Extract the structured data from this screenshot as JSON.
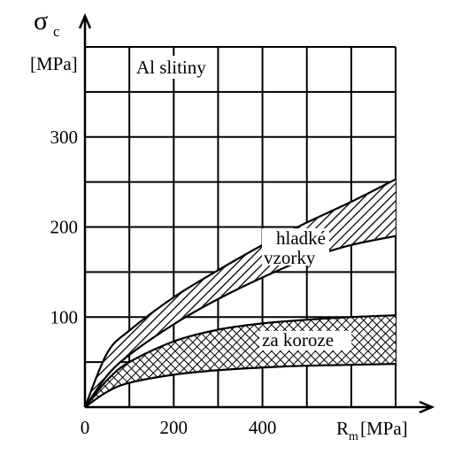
{
  "chart_data": {
    "type": "area",
    "title": "Al slitiny",
    "ylabel": {
      "symbol": "σ",
      "subscript": "c",
      "unit": "[MPa]"
    },
    "xlabel": {
      "symbol": "R",
      "subscript": "m",
      "unit": "[MPa]"
    },
    "xlim": [
      0,
      700
    ],
    "ylim": [
      0,
      400
    ],
    "x_ticks": [
      0,
      200,
      400
    ],
    "y_ticks": [
      100,
      200,
      300
    ],
    "x_grid_step": 100,
    "y_grid_step": 50,
    "grid": true,
    "series": [
      {
        "name": "hladké vzorky",
        "pattern": "hatch",
        "upper": [
          [
            0,
            0
          ],
          [
            50,
            60
          ],
          [
            100,
            85
          ],
          [
            200,
            122
          ],
          [
            300,
            152
          ],
          [
            400,
            180
          ],
          [
            500,
            205
          ],
          [
            600,
            228
          ],
          [
            700,
            253
          ]
        ],
        "lower": [
          [
            0,
            0
          ],
          [
            50,
            35
          ],
          [
            100,
            58
          ],
          [
            200,
            92
          ],
          [
            300,
            120
          ],
          [
            400,
            144
          ],
          [
            500,
            165
          ],
          [
            600,
            180
          ],
          [
            700,
            190
          ]
        ]
      },
      {
        "name": "za koroze",
        "pattern": "crosshatch",
        "upper": [
          [
            0,
            0
          ],
          [
            50,
            30
          ],
          [
            100,
            50
          ],
          [
            200,
            73
          ],
          [
            300,
            86
          ],
          [
            400,
            93
          ],
          [
            500,
            97
          ],
          [
            600,
            100
          ],
          [
            700,
            102
          ]
        ],
        "lower": [
          [
            0,
            0
          ],
          [
            50,
            17
          ],
          [
            100,
            27
          ],
          [
            200,
            36
          ],
          [
            300,
            41
          ],
          [
            400,
            44
          ],
          [
            500,
            46
          ],
          [
            600,
            47
          ],
          [
            700,
            48
          ]
        ]
      }
    ]
  }
}
